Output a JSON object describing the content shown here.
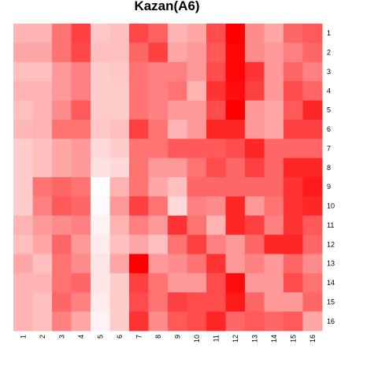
{
  "chart_data": {
    "type": "heatmap",
    "title": "Kazan(A6)",
    "x_categories": [
      "1",
      "2",
      "3",
      "4",
      "5",
      "6",
      "7",
      "8",
      "9",
      "10",
      "11",
      "12",
      "13",
      "14",
      "15",
      "16"
    ],
    "y_categories": [
      "1",
      "2",
      "3",
      "4",
      "5",
      "6",
      "7",
      "8",
      "9",
      "10",
      "11",
      "12",
      "13",
      "14",
      "15",
      "16"
    ],
    "value_range": [
      0,
      1
    ],
    "low_color": "#ffffff",
    "high_color": "#ff0000",
    "legend": "none",
    "grid": false,
    "values": [
      [
        0.3,
        0.3,
        0.55,
        0.75,
        0.22,
        0.25,
        0.72,
        0.62,
        0.3,
        0.35,
        0.7,
        1.0,
        0.45,
        0.35,
        0.6,
        0.65
      ],
      [
        0.35,
        0.35,
        0.55,
        0.72,
        0.25,
        0.25,
        0.6,
        0.75,
        0.35,
        0.4,
        0.65,
        0.98,
        0.45,
        0.4,
        0.5,
        0.6
      ],
      [
        0.25,
        0.25,
        0.4,
        0.5,
        0.2,
        0.22,
        0.55,
        0.5,
        0.5,
        0.4,
        0.7,
        0.98,
        0.8,
        0.4,
        0.6,
        0.5
      ],
      [
        0.3,
        0.3,
        0.4,
        0.5,
        0.2,
        0.2,
        0.55,
        0.5,
        0.55,
        0.3,
        0.8,
        0.95,
        0.75,
        0.4,
        0.7,
        0.6
      ],
      [
        0.25,
        0.3,
        0.45,
        0.65,
        0.2,
        0.2,
        0.55,
        0.5,
        0.4,
        0.4,
        0.7,
        1.0,
        0.4,
        0.35,
        0.65,
        0.85
      ],
      [
        0.28,
        0.3,
        0.55,
        0.55,
        0.22,
        0.25,
        0.75,
        0.55,
        0.3,
        0.4,
        0.85,
        0.85,
        0.4,
        0.35,
        0.75,
        0.75
      ],
      [
        0.2,
        0.25,
        0.35,
        0.4,
        0.15,
        0.2,
        0.55,
        0.55,
        0.65,
        0.65,
        0.65,
        0.7,
        0.85,
        0.6,
        0.6,
        0.6
      ],
      [
        0.2,
        0.25,
        0.35,
        0.4,
        0.12,
        0.15,
        0.55,
        0.4,
        0.4,
        0.55,
        0.7,
        0.6,
        0.75,
        0.6,
        0.85,
        0.85
      ],
      [
        0.2,
        0.55,
        0.6,
        0.55,
        0.0,
        0.3,
        0.55,
        0.35,
        0.25,
        0.6,
        0.6,
        0.6,
        0.6,
        0.6,
        0.8,
        0.9
      ],
      [
        0.2,
        0.5,
        0.65,
        0.6,
        0.02,
        0.4,
        0.75,
        0.55,
        0.15,
        0.5,
        0.45,
        0.85,
        0.4,
        0.55,
        0.8,
        0.85
      ],
      [
        0.3,
        0.4,
        0.45,
        0.5,
        0.05,
        0.3,
        0.5,
        0.4,
        0.8,
        0.55,
        0.3,
        0.85,
        0.75,
        0.5,
        0.8,
        0.65
      ],
      [
        0.25,
        0.35,
        0.6,
        0.4,
        0.08,
        0.25,
        0.35,
        0.25,
        0.55,
        0.75,
        0.5,
        0.4,
        0.6,
        0.85,
        0.85,
        0.6
      ],
      [
        0.35,
        0.25,
        0.55,
        0.45,
        0.1,
        0.35,
        1.0,
        0.4,
        0.45,
        0.55,
        0.8,
        0.4,
        0.5,
        0.4,
        0.6,
        0.45
      ],
      [
        0.3,
        0.3,
        0.55,
        0.6,
        0.1,
        0.2,
        0.75,
        0.55,
        0.4,
        0.4,
        0.7,
        0.95,
        0.4,
        0.4,
        0.7,
        0.55
      ],
      [
        0.3,
        0.25,
        0.6,
        0.5,
        0.08,
        0.2,
        0.7,
        0.55,
        0.75,
        0.7,
        0.7,
        0.9,
        0.6,
        0.4,
        0.4,
        0.6
      ],
      [
        0.3,
        0.25,
        0.5,
        0.35,
        0.05,
        0.2,
        0.8,
        0.45,
        0.65,
        0.7,
        0.85,
        0.6,
        0.65,
        0.6,
        0.65,
        0.35
      ]
    ]
  }
}
